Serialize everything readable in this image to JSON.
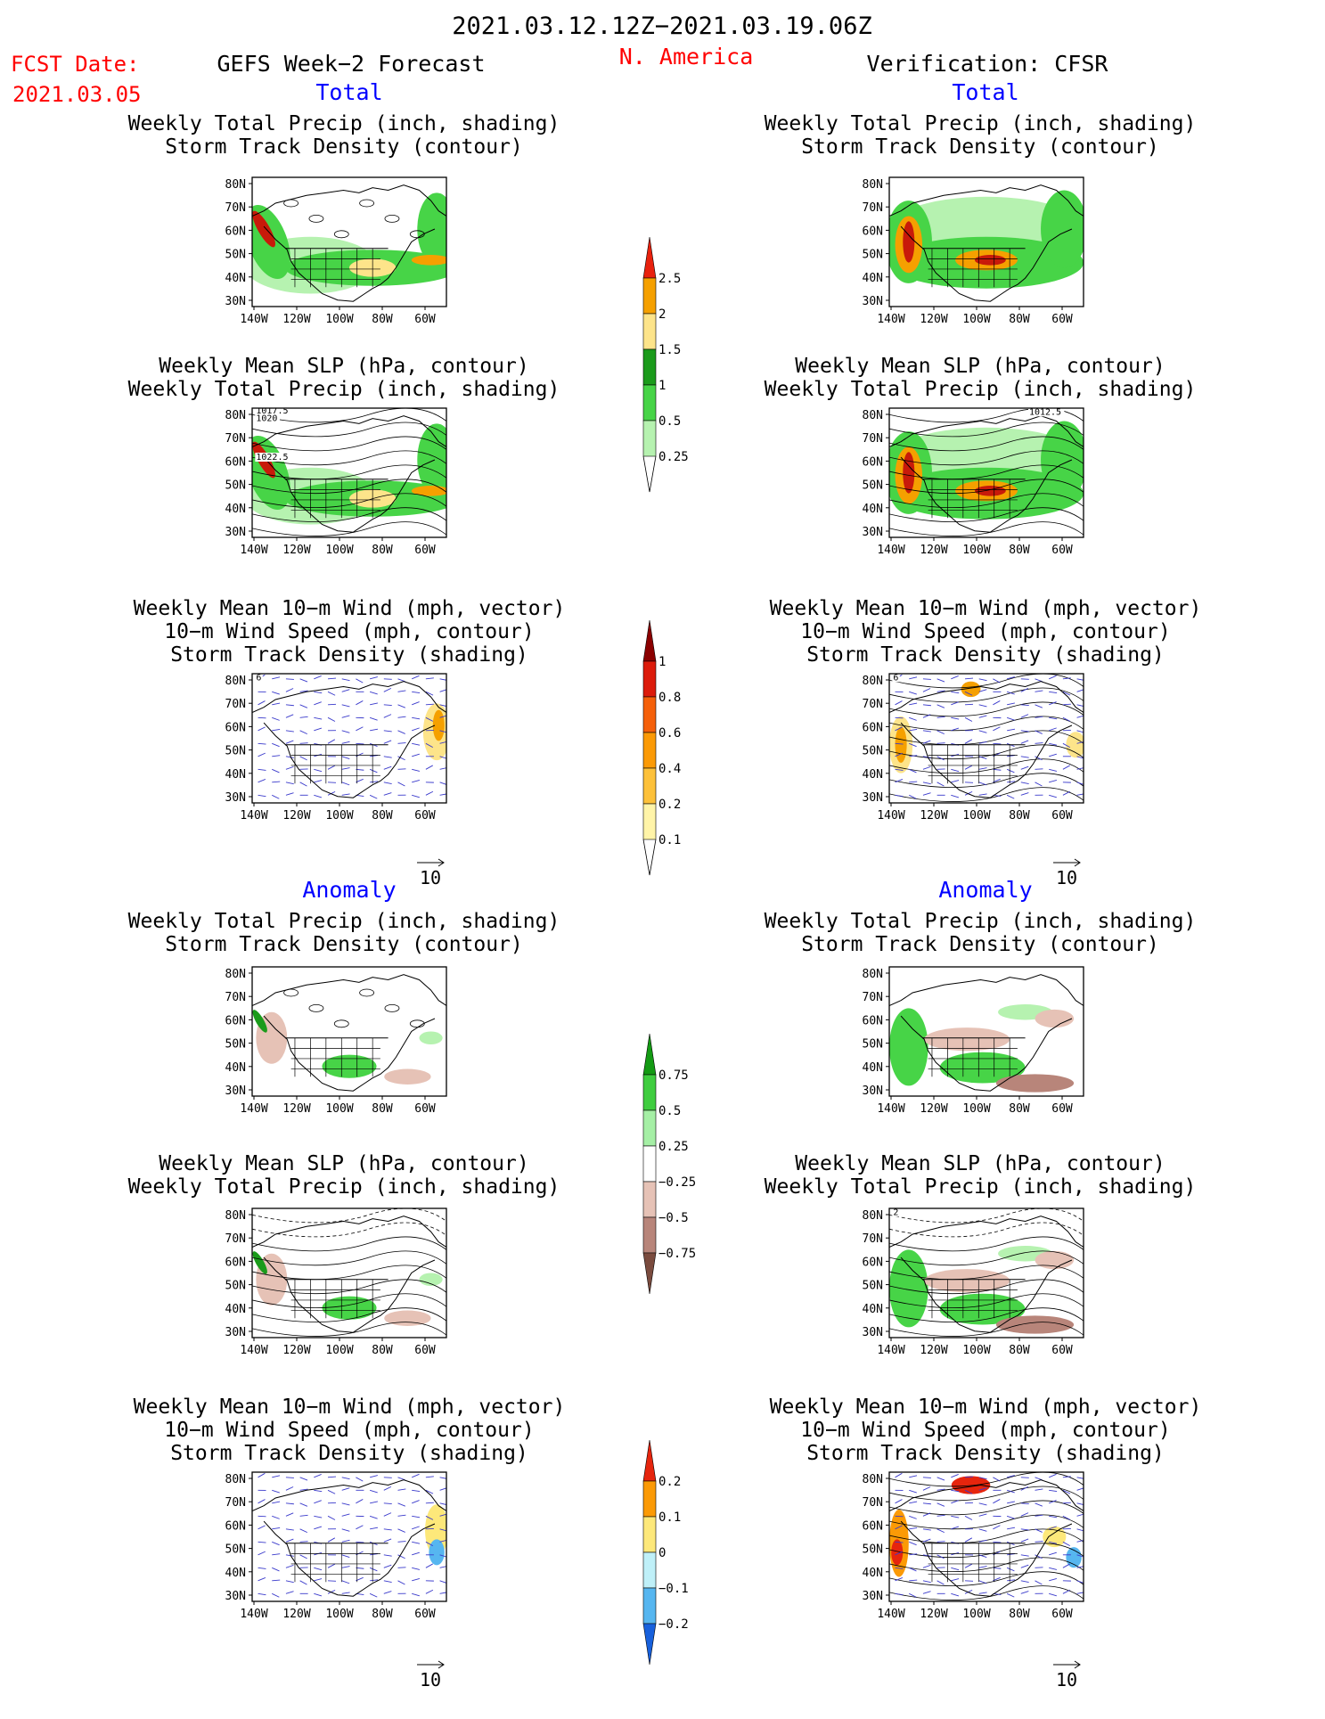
{
  "header": {
    "date_range": "2021.03.12.12Z−2021.03.19.06Z",
    "fcst_label": "FCST Date:",
    "fcst_date": "2021.03.05",
    "forecast_title": "GEFS Week−2 Forecast",
    "region": "N. America",
    "verification_title": "Verification: CFSR"
  },
  "sections": {
    "total": "Total",
    "anomaly": "Anomaly"
  },
  "titles": {
    "precip_track": [
      "Weekly Total Precip (inch, shading)",
      "Storm Track Density (contour)"
    ],
    "slp_precip": [
      "Weekly Mean SLP (hPa, contour)",
      "Weekly Total Precip (inch, shading)"
    ],
    "wind": [
      "Weekly Mean 10−m Wind (mph, vector)",
      "10−m Wind Speed (mph, contour)",
      "Storm Track Density (shading)"
    ]
  },
  "axes": {
    "lat_labels": [
      "80N",
      "70N",
      "60N",
      "50N",
      "40N",
      "30N"
    ],
    "lon_labels": [
      "140W",
      "120W",
      "100W",
      "80W",
      "60W"
    ]
  },
  "vector_ref": "10",
  "contour_labels": {
    "slp_fcst": [
      "1017.5",
      "1020",
      "1022.5"
    ],
    "slp_verif": [
      "1012.5"
    ],
    "wind_fcst": [
      "6"
    ],
    "wind_verif": [
      "6"
    ],
    "anom_slp_verif": [
      "2"
    ]
  },
  "colorbars": [
    {
      "name": "precip-total",
      "levels": [
        "2.5",
        "2",
        "1.5",
        "1",
        "0.5",
        "0.25"
      ],
      "colors": [
        "#e8210d",
        "#f5a000",
        "#fde48a",
        "#1b9b1b",
        "#47d447",
        "#b6f2b0"
      ]
    },
    {
      "name": "track-density-total",
      "levels": [
        "1",
        "0.8",
        "0.6",
        "0.4",
        "0.2",
        "0.1"
      ],
      "colors": [
        "#8b0000",
        "#dc1b0b",
        "#f5600a",
        "#fb9a06",
        "#fdc13a",
        "#fff4a8"
      ]
    },
    {
      "name": "precip-anomaly",
      "levels": [
        "0.75",
        "0.5",
        "0.25",
        "−0.25",
        "−0.5",
        "−0.75"
      ],
      "colors": [
        "#139a13",
        "#3fcd3f",
        "#a5efa5",
        "#ffffff",
        "#e6c2b6",
        "#b8857a",
        "#7a4b3e"
      ]
    },
    {
      "name": "track-density-anomaly",
      "levels": [
        "0.2",
        "0.1",
        "0",
        "−0.1",
        "−0.2"
      ],
      "colors": [
        "#e6250d",
        "#fb9a06",
        "#fde87a",
        "#bff0f8",
        "#56b6f0",
        "#1760dc"
      ]
    }
  ],
  "palette": {
    "title_blue": "#0000ff",
    "header_red": "#ff0000",
    "precip_light": "#b6f2b0",
    "precip_mid": "#47d447",
    "precip_dark": "#1b9b1b",
    "precip_yellow": "#fde48a",
    "precip_orange": "#f5a000",
    "precip_red": "#c81a0a",
    "anom_brown_light": "#e6c2b6",
    "anom_brown_mid": "#b8857a",
    "wind_vector": "#3a3acb"
  }
}
